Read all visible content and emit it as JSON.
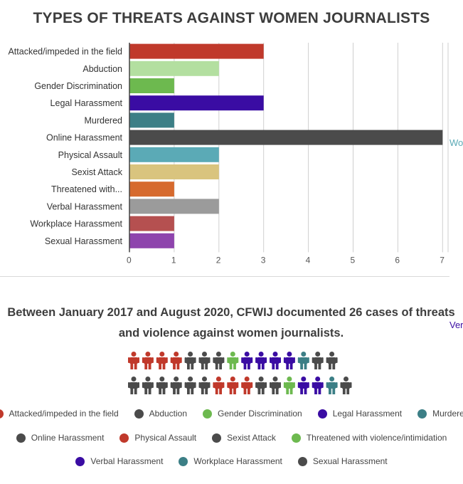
{
  "chart_data": {
    "type": "bar",
    "orientation": "horizontal",
    "title": "TYPES OF THREATS AGAINST WOMEN JOURNALISTS",
    "categories": [
      "Attacked/impeded in the field",
      "Abduction",
      "Gender Discrimination",
      "Legal Harassment",
      "Murdered",
      "Online Harassment",
      "Physical Assault",
      "Sexist Attack",
      "Threatened with...",
      "Verbal Harassment",
      "Workplace Harassment",
      "Sexual Harassment"
    ],
    "values": [
      3,
      2,
      1,
      3,
      1,
      7,
      2,
      2,
      1,
      2,
      1,
      1
    ],
    "colors": [
      "#c0392b",
      "#b3dfa0",
      "#6db94f",
      "#3a0ca3",
      "#3c7f86",
      "#4b4b4b",
      "#5baab6",
      "#d9c47e",
      "#d66a2e",
      "#9b9b9b",
      "#b55050",
      "#8e44ad"
    ],
    "xlim": [
      0,
      7
    ],
    "xticks": [
      0,
      1,
      2,
      3,
      4,
      5,
      6,
      7
    ],
    "grid": true
  },
  "cut_labels": {
    "right_top": "Wo",
    "right_bottom": "Ver"
  },
  "summary": "Between January 2017 and August 2020, CFWIJ documented 26 cases of threats and violence against women journalists.",
  "figures": {
    "icon": "person-icon",
    "row1": [
      "#c0392b",
      "#c0392b",
      "#c0392b",
      "#c0392b",
      "#4b4b4b",
      "#4b4b4b",
      "#4b4b4b",
      "#6db94f",
      "#3a0ca3",
      "#3a0ca3",
      "#3a0ca3",
      "#3a0ca3",
      "#3c7f86",
      "#4b4b4b",
      "#4b4b4b"
    ],
    "row2": [
      "#4b4b4b",
      "#4b4b4b",
      "#4b4b4b",
      "#4b4b4b",
      "#4b4b4b",
      "#4b4b4b",
      "#c0392b",
      "#c0392b",
      "#c0392b",
      "#4b4b4b",
      "#4b4b4b",
      "#6db94f",
      "#3a0ca3",
      "#3a0ca3",
      "#3c7f86",
      "#4b4b4b"
    ]
  },
  "legend": {
    "row1": [
      {
        "label": "Attacked/impeded in the field",
        "color": "#c0392b"
      },
      {
        "label": "Abduction",
        "color": "#4b4b4b"
      },
      {
        "label": "Gender Discrimination",
        "color": "#6db94f"
      },
      {
        "label": "Legal Harassment",
        "color": "#3a0ca3"
      },
      {
        "label": "Murdered",
        "color": "#3c7f86"
      }
    ],
    "row2": [
      {
        "label": "Online Harassment",
        "color": "#4b4b4b"
      },
      {
        "label": "Physical Assault",
        "color": "#c0392b"
      },
      {
        "label": "Sexist Attack",
        "color": "#4b4b4b"
      },
      {
        "label": "Threatened with violence/intimidation",
        "color": "#6db94f"
      }
    ],
    "row3": [
      {
        "label": "Verbal Harassment",
        "color": "#3a0ca3"
      },
      {
        "label": "Workplace Harassment",
        "color": "#3c7f86"
      },
      {
        "label": "Sexual Harassment",
        "color": "#4b4b4b"
      }
    ]
  }
}
